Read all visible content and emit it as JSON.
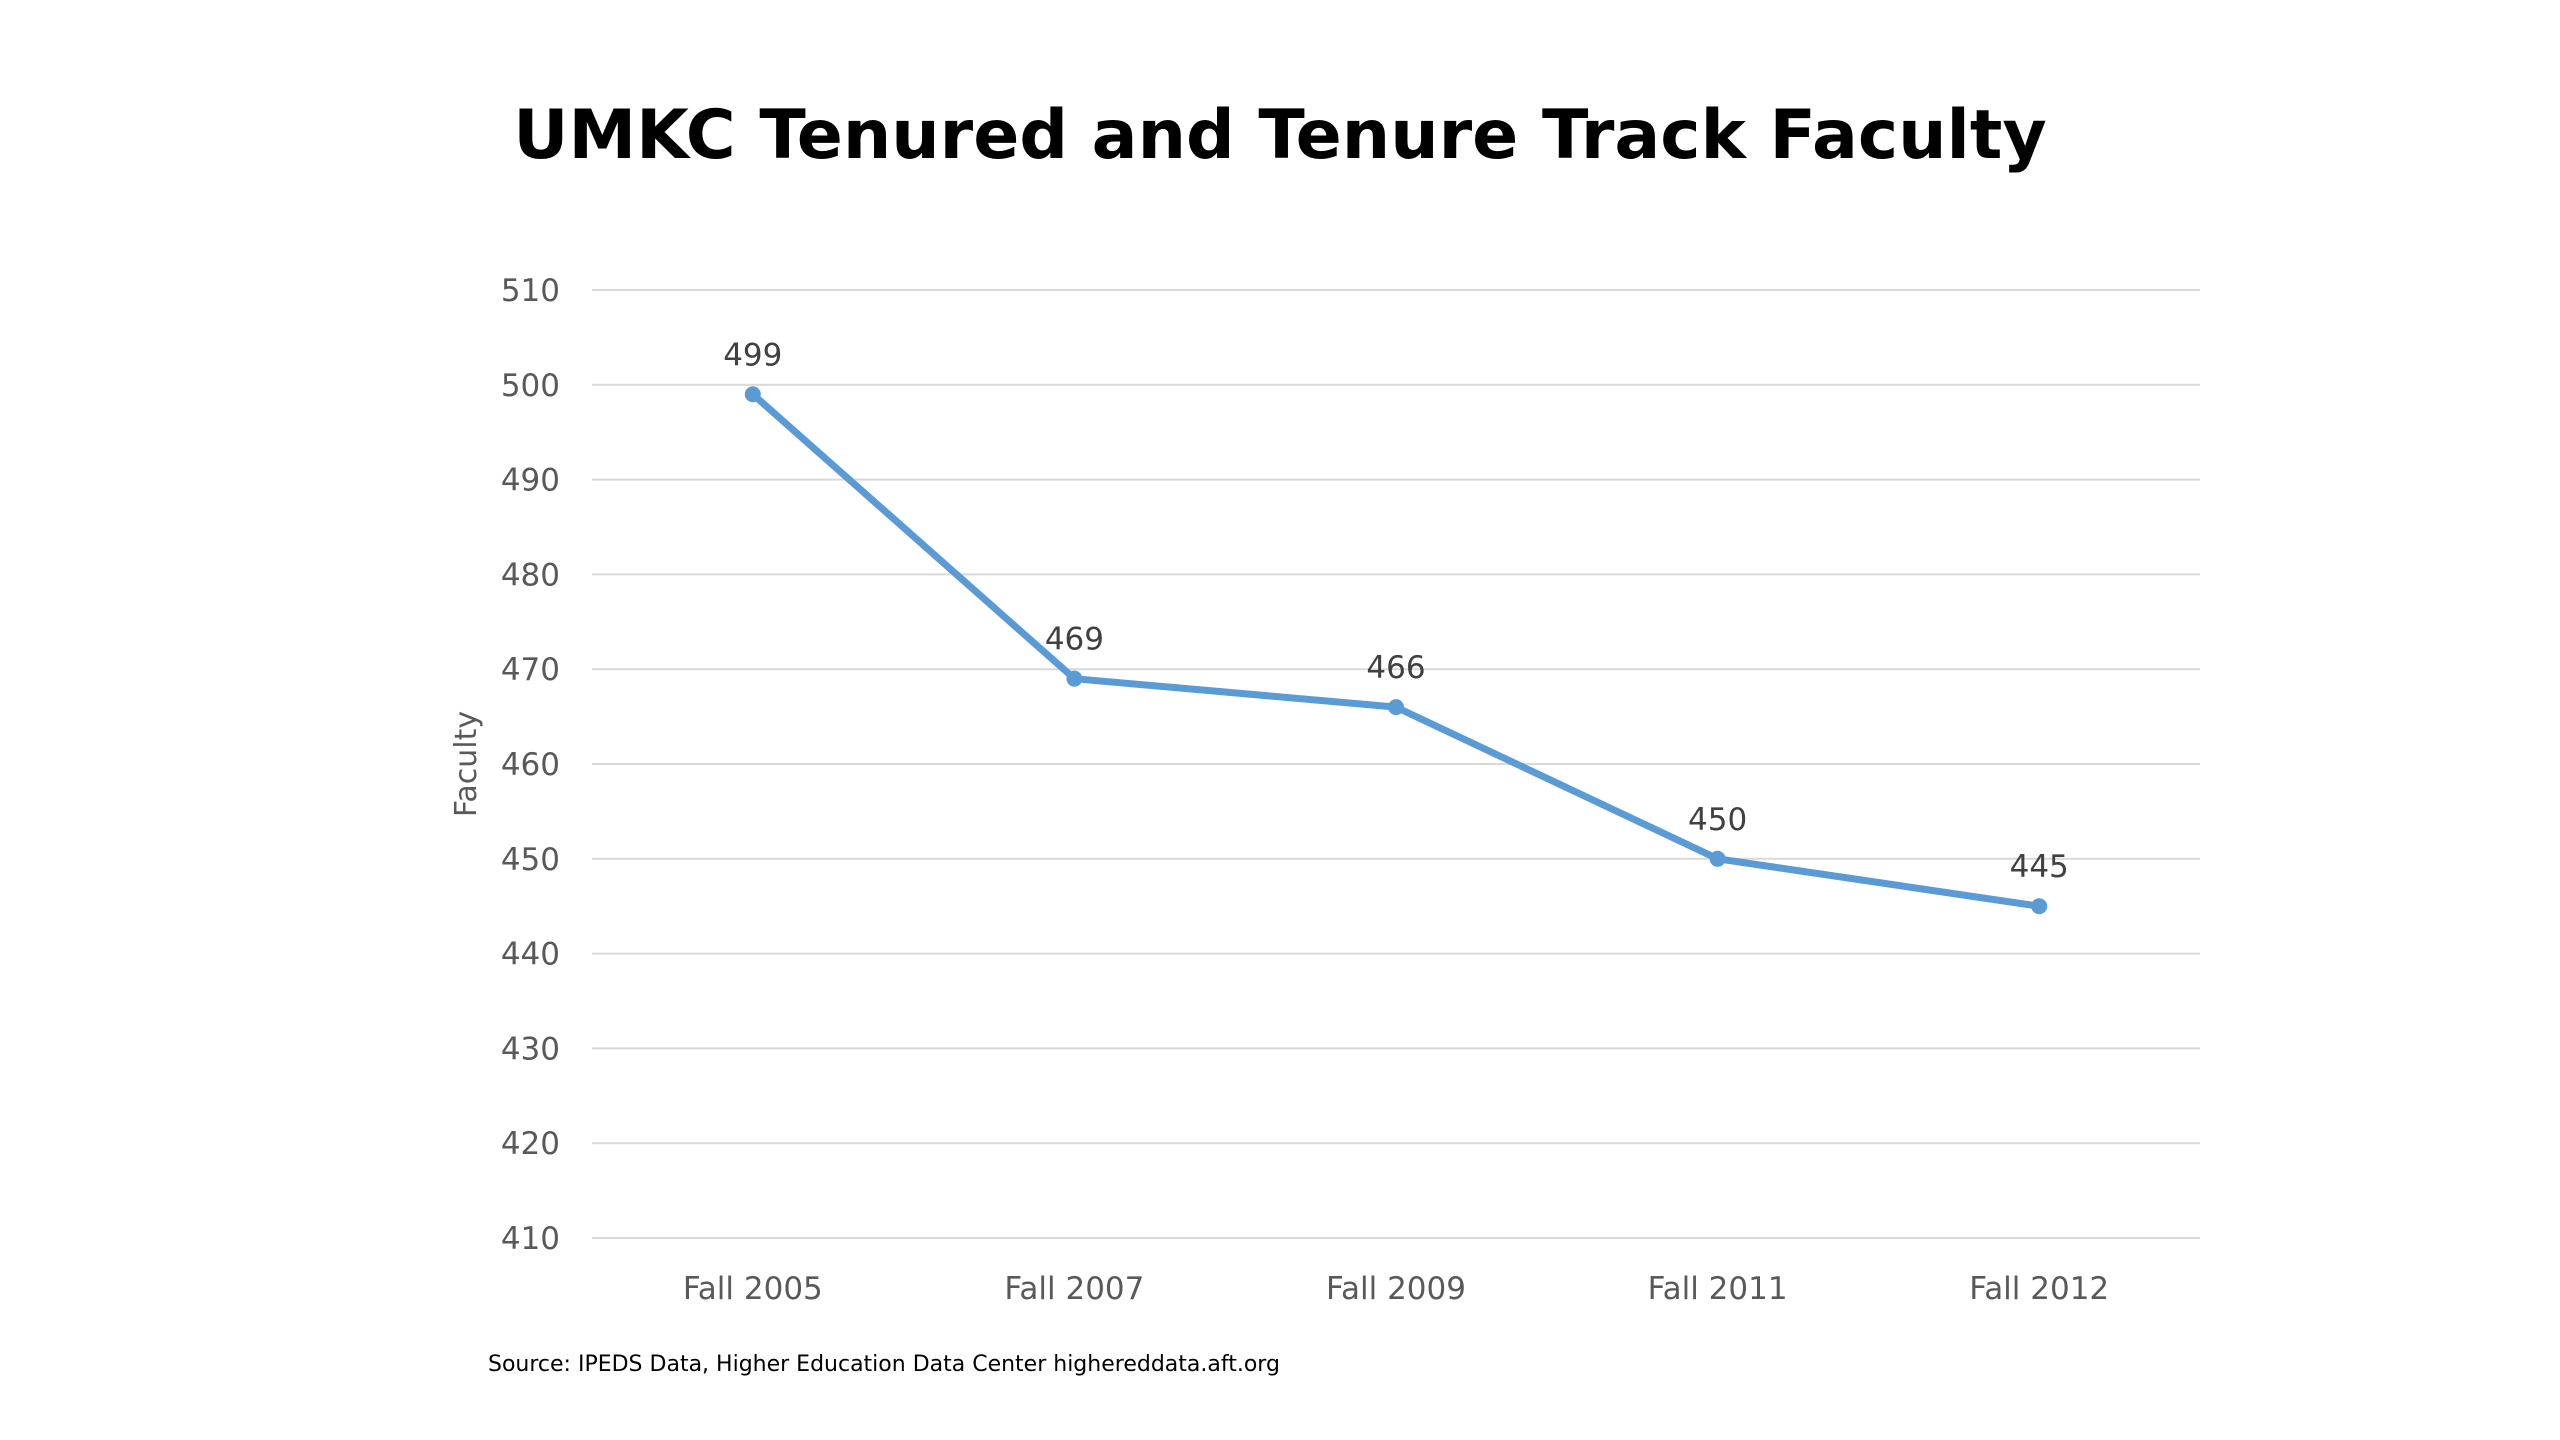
{
  "chart_data": {
    "type": "line",
    "title": "UMKC Tenured and Tenure Track Faculty",
    "xlabel": "",
    "ylabel": "Faculty",
    "categories": [
      "Fall 2005",
      "Fall 2007",
      "Fall 2009",
      "Fall 2011",
      "Fall 2012"
    ],
    "series": [
      {
        "values": [
          499,
          469,
          466,
          450,
          445
        ],
        "color": "#5b9bd5"
      }
    ],
    "ylim": [
      410,
      510
    ],
    "yticks": [
      410,
      420,
      430,
      440,
      450,
      460,
      470,
      480,
      490,
      500,
      510
    ],
    "grid": true,
    "data_labels": true,
    "gridline_color": "#d9d9d9",
    "legend": "none"
  },
  "footer": {
    "source": "Source: IPEDS Data, Higher Education Data Center higher​eddata.aft.org"
  }
}
